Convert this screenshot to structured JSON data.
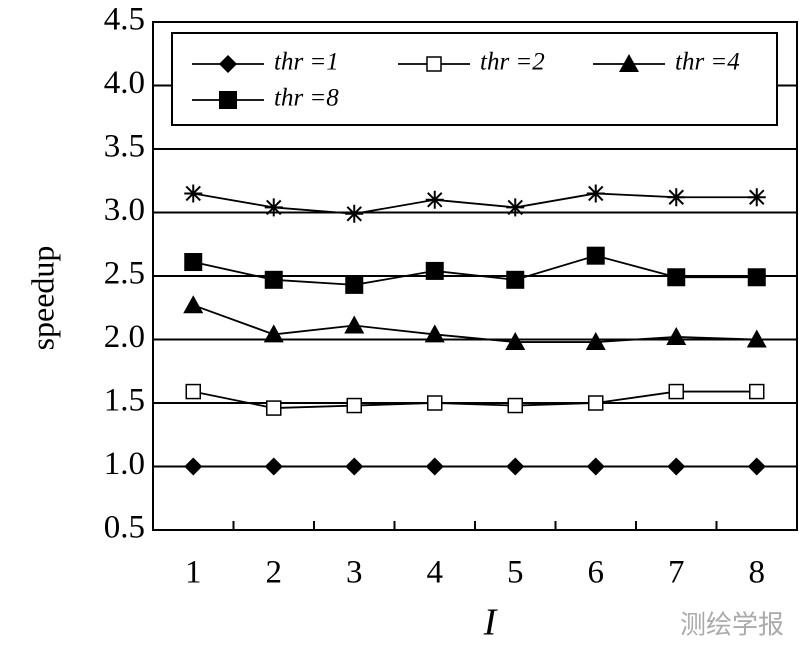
{
  "chart_data": {
    "type": "line",
    "x_label": "I",
    "y_label": "speedup",
    "categories": [
      "1",
      "2",
      "3",
      "4",
      "5",
      "6",
      "7",
      "8"
    ],
    "ylim": [
      0.5,
      4.5
    ],
    "yticks": [
      0.5,
      {
        "value": 1,
        "label": "1.0"
      },
      1.5,
      {
        "value": 2,
        "label": "2.0"
      },
      2.5,
      {
        "value": 3,
        "label": "3.0"
      },
      3.5,
      {
        "value": 4,
        "label": "4.0"
      },
      4.5
    ],
    "grid": true,
    "legend": "top",
    "series": [
      {
        "name": "thr =1",
        "color": "#000000",
        "marker": "diamond",
        "values": [
          1,
          1,
          1,
          1,
          1,
          1,
          1,
          1
        ]
      },
      {
        "name": "thr =2",
        "color": "#000000",
        "marker": "square-open",
        "values": [
          1.59,
          1.46,
          1.48,
          1.5,
          1.48,
          1.5,
          1.59,
          1.59
        ]
      },
      {
        "name": "thr =4",
        "color": "#000000",
        "marker": "triangle",
        "values": [
          2.27,
          2.04,
          2.11,
          2.04,
          1.98,
          1.98,
          2.02,
          2.0
        ]
      },
      {
        "name": "thr =8",
        "color": "#000000",
        "marker": "square",
        "values": [
          2.61,
          2.47,
          2.43,
          2.54,
          2.47,
          2.66,
          2.49,
          2.49
        ]
      },
      {
        "color": "#000000",
        "marker": "asterisk",
        "values": [
          3.15,
          3.04,
          2.99,
          3.1,
          3.04,
          3.15,
          3.12,
          3.12
        ]
      }
    ]
  },
  "watermark": "测绘学报"
}
